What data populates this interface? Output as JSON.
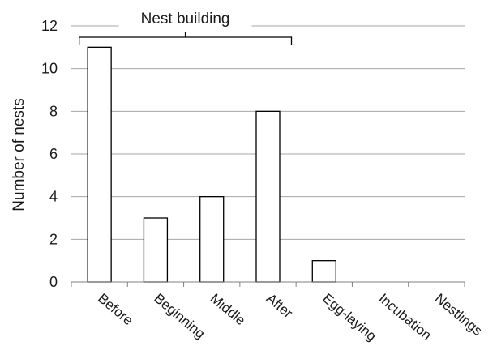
{
  "chart_data": {
    "type": "bar",
    "categories": [
      "Before",
      "Beginning",
      "Middle",
      "After",
      "Egg-laying",
      "Incubation",
      "Nestlings"
    ],
    "values": [
      11,
      3,
      4,
      8,
      1,
      0,
      0
    ],
    "title": "",
    "xlabel": "",
    "ylabel": "Number of nests",
    "ylim": [
      0,
      12
    ],
    "yticks": [
      0,
      2,
      4,
      6,
      8,
      10,
      12
    ],
    "grid": true,
    "bar_fill": "#ffffff",
    "bar_stroke": "#000000",
    "annotations": [
      {
        "text": "Nest building",
        "spans_categories": [
          "Before",
          "After"
        ]
      }
    ]
  }
}
